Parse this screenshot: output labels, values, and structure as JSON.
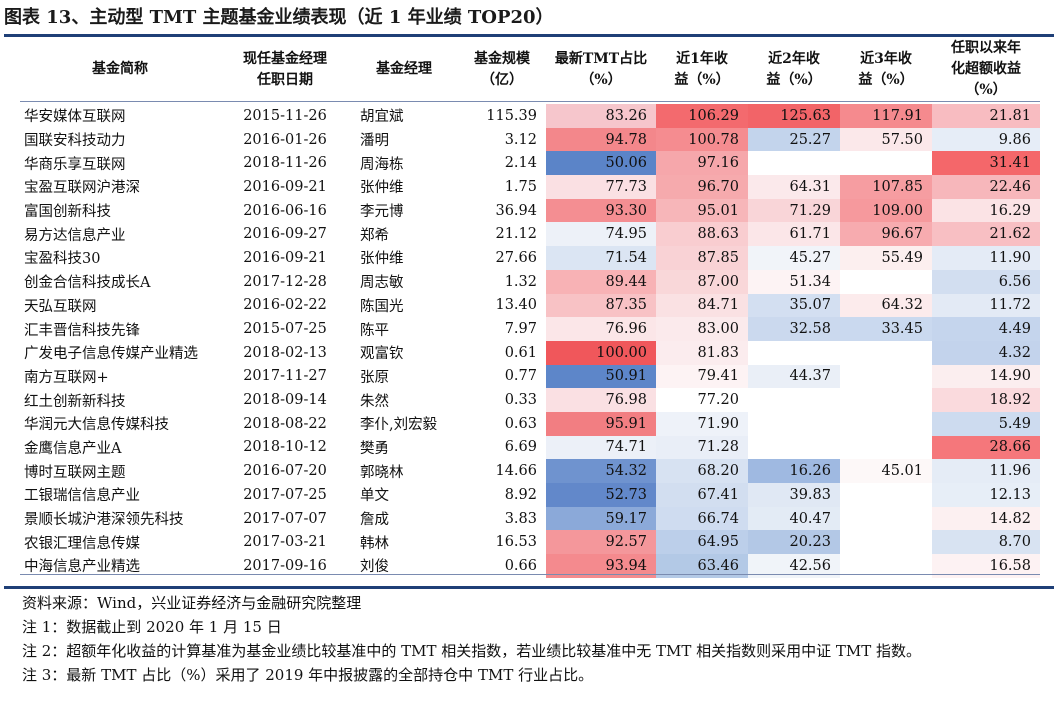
{
  "title": "图表 13、主动型 TMT 主题基金业绩表现（近 1 年业绩 TOP20）",
  "headers": [
    "基金简称",
    "现任基金经理任职日期",
    "基金经理",
    "基金规模（亿）",
    "最新TMT占比（%）",
    "近1年收益（%）",
    "近2年收益（%）",
    "近3年收益（%）",
    "任职以来年化超额收益（%）"
  ],
  "header_lines": [
    [
      "基金简称"
    ],
    [
      "现任基金经理",
      "任职日期"
    ],
    [
      "基金经理"
    ],
    [
      "基金规模",
      "（亿）"
    ],
    [
      "最新TMT占比",
      "（%）"
    ],
    [
      "近1年收",
      "益（%）"
    ],
    [
      "近2年收",
      "益（%）"
    ],
    [
      "近3年收",
      "益（%）"
    ],
    [
      "任职以来年",
      "化超额收益",
      "（%）"
    ]
  ],
  "rows": [
    [
      "华安媒体互联网",
      "2015-11-26",
      "胡宜斌",
      "115.39",
      "83.26",
      "106.29",
      "125.63",
      "117.91",
      "21.81"
    ],
    [
      "国联安科技动力",
      "2016-01-26",
      "潘明",
      "3.12",
      "94.78",
      "100.78",
      "25.27",
      "57.50",
      "9.86"
    ],
    [
      "华商乐享互联网",
      "2018-11-26",
      "周海栋",
      "2.14",
      "50.06",
      "97.16",
      "",
      "",
      "31.41"
    ],
    [
      "宝盈互联网沪港深",
      "2016-09-21",
      "张仲维",
      "1.75",
      "77.73",
      "96.70",
      "64.31",
      "107.85",
      "22.46"
    ],
    [
      "富国创新科技",
      "2016-06-16",
      "李元博",
      "36.94",
      "93.30",
      "95.01",
      "71.29",
      "109.00",
      "16.29"
    ],
    [
      "易方达信息产业",
      "2016-09-27",
      "郑希",
      "21.12",
      "74.95",
      "88.63",
      "61.71",
      "96.67",
      "21.62"
    ],
    [
      "宝盈科技30",
      "2016-09-21",
      "张仲维",
      "27.66",
      "71.54",
      "87.85",
      "45.27",
      "55.49",
      "11.90"
    ],
    [
      "创金合信科技成长A",
      "2017-12-28",
      "周志敏",
      "1.32",
      "89.44",
      "87.00",
      "51.34",
      "",
      "6.56"
    ],
    [
      "天弘互联网",
      "2016-02-22",
      "陈国光",
      "13.40",
      "87.35",
      "84.71",
      "35.07",
      "64.32",
      "11.72"
    ],
    [
      "汇丰晋信科技先锋",
      "2015-07-25",
      "陈平",
      "7.97",
      "76.96",
      "83.00",
      "32.58",
      "33.45",
      "4.49"
    ],
    [
      "广发电子信息传媒产业精选",
      "2018-02-13",
      "观富钦",
      "0.61",
      "100.00",
      "81.83",
      "",
      "",
      "4.32"
    ],
    [
      "南方互联网+",
      "2017-11-27",
      "张原",
      "0.77",
      "50.91",
      "79.41",
      "44.37",
      "",
      "14.90"
    ],
    [
      "红土创新新科技",
      "2018-09-14",
      "朱然",
      "0.33",
      "76.98",
      "77.20",
      "",
      "",
      "18.92"
    ],
    [
      "华润元大信息传媒科技",
      "2018-08-22",
      "李仆,刘宏毅",
      "0.63",
      "95.91",
      "71.90",
      "",
      "",
      "5.49"
    ],
    [
      "金鹰信息产业A",
      "2018-10-12",
      "樊勇",
      "6.69",
      "74.71",
      "71.28",
      "",
      "",
      "28.66"
    ],
    [
      "博时互联网主题",
      "2016-07-20",
      "郭晓林",
      "14.66",
      "54.32",
      "68.20",
      "16.26",
      "45.01",
      "11.96"
    ],
    [
      "工银瑞信信息产业",
      "2017-07-25",
      "单文",
      "8.92",
      "52.73",
      "67.41",
      "39.83",
      "",
      "12.13"
    ],
    [
      "景顺长城沪港深领先科技",
      "2017-07-07",
      "詹成",
      "3.83",
      "59.17",
      "66.74",
      "40.47",
      "",
      "14.82"
    ],
    [
      "农银汇理信息传媒",
      "2017-03-21",
      "韩林",
      "16.53",
      "92.57",
      "64.95",
      "20.23",
      "",
      "8.70"
    ],
    [
      "中海信息产业精选",
      "2017-09-16",
      "刘俊",
      "0.66",
      "93.94",
      "63.46",
      "42.56",
      "",
      "16.58"
    ]
  ],
  "cell_colors": [
    [
      null,
      null,
      null,
      null,
      "#f6c6cc",
      "#f36a6e",
      "#f26468",
      "#f58a8e",
      "#f8bcc1"
    ],
    [
      null,
      null,
      null,
      null,
      "#f3878b",
      "#f58c90",
      "#c3d4ec",
      "#fbe8ea",
      "#e6edf7"
    ],
    [
      null,
      null,
      null,
      null,
      "#5b84c8",
      "#f6a7ab",
      null,
      null,
      "#f4676a"
    ],
    [
      null,
      null,
      null,
      null,
      "#fae0e3",
      "#f6aaad",
      "#fbe9eb",
      "#f69da1",
      "#f7b7bb"
    ],
    [
      null,
      null,
      null,
      null,
      "#f48e92",
      "#f7b6b9",
      "#f9d5d8",
      "#f6999d",
      "#fbe3e5"
    ],
    [
      null,
      null,
      null,
      null,
      "#edf1f8",
      "#f9cdd0",
      "#fbe6e8",
      "#f7abaf",
      "#f8bfc3"
    ],
    [
      null,
      null,
      null,
      null,
      "#dbe5f3",
      "#f9d2d5",
      "#f1f4f9",
      "#fcefef",
      "#e4ebf6"
    ],
    [
      null,
      null,
      null,
      null,
      "#f8b2b5",
      "#f9d7d9",
      "#fdf3f4",
      null,
      "#d2def0"
    ],
    [
      null,
      null,
      null,
      null,
      "#f8c2c5",
      "#fae1e3",
      "#d3dff1",
      "#fcebec",
      "#e3eaf5"
    ],
    [
      null,
      null,
      null,
      null,
      "#fbe6e8",
      "#fbeaec",
      "#cbd9ee",
      "#cad9ef",
      "#c5d5ed"
    ],
    [
      null,
      null,
      null,
      null,
      "#f0575b",
      "#fbecee",
      null,
      null,
      "#c3d3ec"
    ],
    [
      null,
      null,
      null,
      null,
      "#5d86c9",
      "#fdf3f4",
      "#eaeff7",
      null,
      "#fbeeef"
    ],
    [
      null,
      null,
      null,
      null,
      "#fae0e3",
      "#ffffff",
      null,
      null,
      "#fadadd"
    ],
    [
      null,
      null,
      null,
      null,
      "#f27e82",
      "#eef2f9",
      null,
      null,
      "#cddbef"
    ],
    [
      null,
      null,
      null,
      null,
      "#ecf0f8",
      "#e9eef7",
      null,
      null,
      "#f5777b"
    ],
    [
      null,
      null,
      null,
      null,
      "#6f93cf",
      "#d7e2f2",
      "#9fb9e1",
      "#fdf8f8",
      "#e5ecf6"
    ],
    [
      null,
      null,
      null,
      null,
      "#6288ca",
      "#d2def0",
      "#e0e8f4",
      null,
      "#e7eef7"
    ],
    [
      null,
      null,
      null,
      null,
      "#8ba9d9",
      "#cfdcf0",
      "#e3ebf5",
      null,
      "#fcf0f1"
    ],
    [
      null,
      null,
      null,
      null,
      "#f4979b",
      "#bccfea",
      "#b3c8e6",
      null,
      "#d8e3f2"
    ],
    [
      null,
      null,
      null,
      null,
      "#f48a8e",
      "#b3c9e6",
      "#f0f4f9",
      null,
      "#fdf2f3"
    ]
  ],
  "footnotes": [
    "资料来源：Wind，兴业证券经济与金融研究院整理",
    "注 1：数据截止到 2020 年 1 月 15 日",
    "注 2：超额年化收益的计算基准为基金业绩比较基准中的 TMT 相关指数，若业绩比较基准中无 TMT 相关指数则采用中证 TMT 指数。",
    "注 3：最新 TMT 占比（%）采用了 2019 年中报披露的全部持仓中 TMT 行业占比。"
  ]
}
